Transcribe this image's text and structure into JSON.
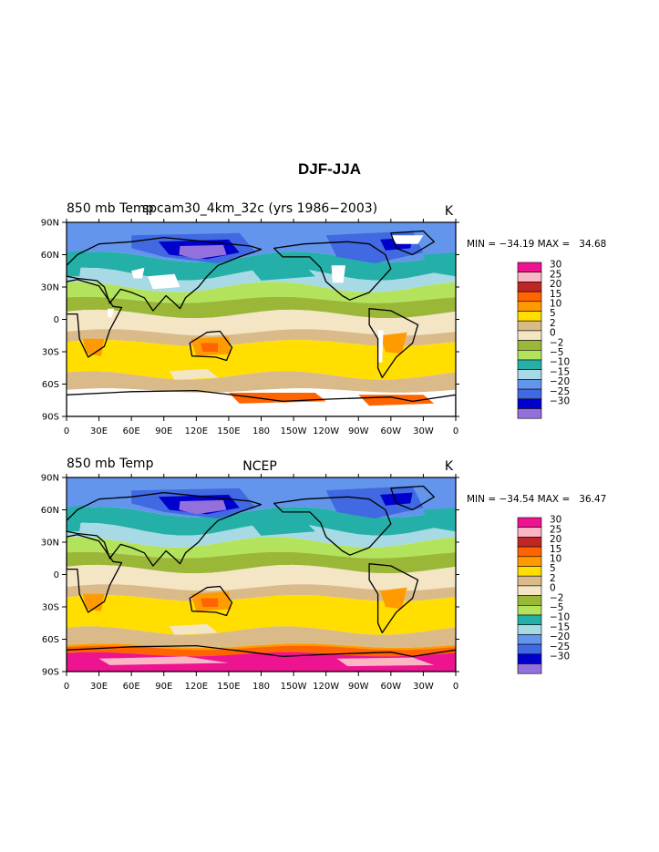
{
  "page_title": "DJF-JJA",
  "colors": {
    "30": "#ee1491",
    "25": "#fbb5c4",
    "20": "#bf2727",
    "15": "#ff6400",
    "10": "#ff9b00",
    "5": "#ffde00",
    "2": "#dbba8a",
    "0": "#f4e6c4",
    "-2": "#9ab738",
    "-5": "#b3e35c",
    "-10": "#24b0a8",
    "-15": "#a7dae4",
    "-20": "#6495ed",
    "-25": "#4169e1",
    "-30": "#0000cd",
    "min": "#9370db",
    "missing": "#ffffff",
    "land_outline": "#000000"
  },
  "chart_data": [
    {
      "type": "heatmap",
      "name": "spcam30_4km_32c",
      "left_label": "850 mb Temp",
      "center_label": "spcam30_4km_32c (yrs 1986−2003)",
      "units": "K",
      "min_max_label": "MIN = −34.19 MAX =   34.68",
      "min": -34.19,
      "max": 34.68,
      "x_ticks": [
        "0",
        "30E",
        "60E",
        "90E",
        "120E",
        "150E",
        "180",
        "150W",
        "120W",
        "90W",
        "60W",
        "30W",
        "0"
      ],
      "y_ticks": [
        "90N",
        "60N",
        "30N",
        "0",
        "30S",
        "60S",
        "90S"
      ],
      "xlim": [
        0,
        360
      ],
      "ylim": [
        -90,
        90
      ],
      "levels": [
        30,
        25,
        20,
        15,
        10,
        5,
        2,
        0,
        -2,
        -5,
        -10,
        -15,
        -20,
        -25,
        -30
      ],
      "level_labels": [
        "30",
        "25",
        "20",
        "15",
        "10",
        "5",
        "2",
        "0",
        "−2",
        "−5",
        "−10",
        "−15",
        "−20",
        "−25",
        "−30"
      ],
      "missing_over_high_terrain": true
    },
    {
      "type": "heatmap",
      "name": "NCEP",
      "left_label": "850 mb Temp",
      "center_label": "NCEP",
      "units": "K",
      "min_max_label": "MIN = −34.54 MAX =   36.47",
      "min": -34.54,
      "max": 36.47,
      "x_ticks": [
        "0",
        "30E",
        "60E",
        "90E",
        "120E",
        "150E",
        "180",
        "150W",
        "120W",
        "90W",
        "60W",
        "30W",
        "0"
      ],
      "y_ticks": [
        "90N",
        "60N",
        "30N",
        "0",
        "30S",
        "60S",
        "90S"
      ],
      "xlim": [
        0,
        360
      ],
      "ylim": [
        -90,
        90
      ],
      "levels": [
        30,
        25,
        20,
        15,
        10,
        5,
        2,
        0,
        -2,
        -5,
        -10,
        -15,
        -20,
        -25,
        -30
      ],
      "level_labels": [
        "30",
        "25",
        "20",
        "15",
        "10",
        "5",
        "2",
        "0",
        "−2",
        "−5",
        "−10",
        "−15",
        "−20",
        "−25",
        "−30"
      ],
      "missing_over_high_terrain": false
    }
  ]
}
